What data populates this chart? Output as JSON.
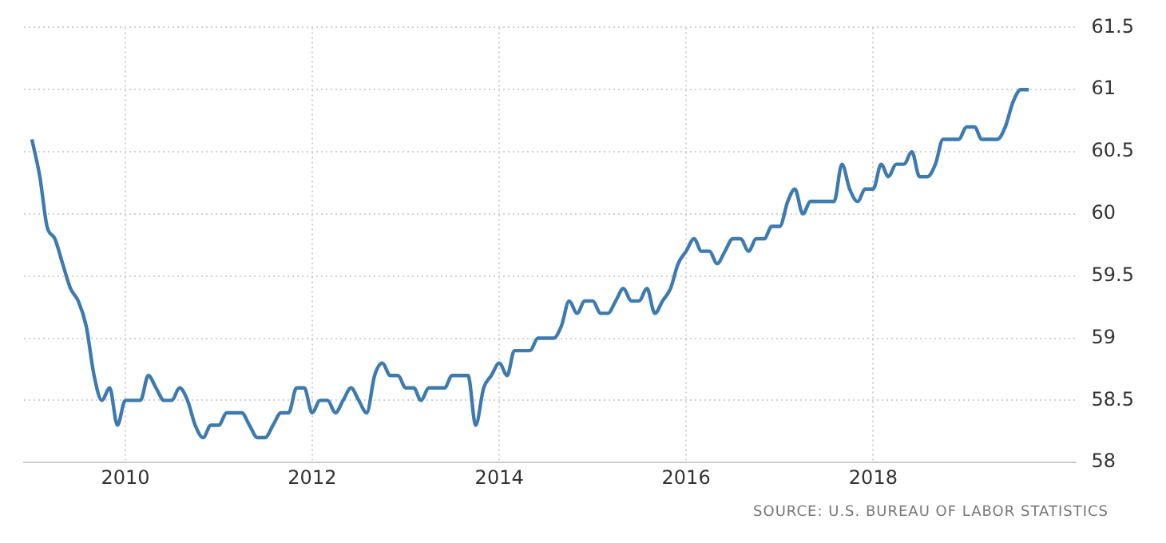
{
  "chart_data": {
    "type": "line",
    "x": [
      "2009-01",
      "2009-02",
      "2009-03",
      "2009-04",
      "2009-05",
      "2009-06",
      "2009-07",
      "2009-08",
      "2009-09",
      "2009-10",
      "2009-11",
      "2009-12",
      "2010-01",
      "2010-02",
      "2010-03",
      "2010-04",
      "2010-05",
      "2010-06",
      "2010-07",
      "2010-08",
      "2010-09",
      "2010-10",
      "2010-11",
      "2010-12",
      "2011-01",
      "2011-02",
      "2011-03",
      "2011-04",
      "2011-05",
      "2011-06",
      "2011-07",
      "2011-08",
      "2011-09",
      "2011-10",
      "2011-11",
      "2011-12",
      "2012-01",
      "2012-02",
      "2012-03",
      "2012-04",
      "2012-05",
      "2012-06",
      "2012-07",
      "2012-08",
      "2012-09",
      "2012-10",
      "2012-11",
      "2012-12",
      "2013-01",
      "2013-02",
      "2013-03",
      "2013-04",
      "2013-05",
      "2013-06",
      "2013-07",
      "2013-08",
      "2013-09",
      "2013-10",
      "2013-11",
      "2013-12",
      "2014-01",
      "2014-02",
      "2014-03",
      "2014-04",
      "2014-05",
      "2014-06",
      "2014-07",
      "2014-08",
      "2014-09",
      "2014-10",
      "2014-11",
      "2014-12",
      "2015-01",
      "2015-02",
      "2015-03",
      "2015-04",
      "2015-05",
      "2015-06",
      "2015-07",
      "2015-08",
      "2015-09",
      "2015-10",
      "2015-11",
      "2015-12",
      "2016-01",
      "2016-02",
      "2016-03",
      "2016-04",
      "2016-05",
      "2016-06",
      "2016-07",
      "2016-08",
      "2016-09",
      "2016-10",
      "2016-11",
      "2016-12",
      "2017-01",
      "2017-02",
      "2017-03",
      "2017-04",
      "2017-05",
      "2017-06",
      "2017-07",
      "2017-08",
      "2017-09",
      "2017-10",
      "2017-11",
      "2017-12",
      "2018-01",
      "2018-02",
      "2018-03",
      "2018-04",
      "2018-05",
      "2018-06",
      "2018-07",
      "2018-08",
      "2018-09",
      "2018-10",
      "2018-11",
      "2018-12",
      "2019-01",
      "2019-02",
      "2019-03",
      "2019-04",
      "2019-05",
      "2019-06",
      "2019-07",
      "2019-08",
      "2019-09"
    ],
    "series": [
      {
        "color": "#3d7ab0",
        "values": [
          60.6,
          60.3,
          59.9,
          59.8,
          59.6,
          59.4,
          59.3,
          59.1,
          58.7,
          58.5,
          58.6,
          58.3,
          58.5,
          58.5,
          58.5,
          58.7,
          58.6,
          58.5,
          58.5,
          58.6,
          58.5,
          58.3,
          58.2,
          58.3,
          58.3,
          58.4,
          58.4,
          58.4,
          58.3,
          58.2,
          58.2,
          58.3,
          58.4,
          58.4,
          58.6,
          58.6,
          58.4,
          58.5,
          58.5,
          58.4,
          58.5,
          58.6,
          58.5,
          58.4,
          58.7,
          58.8,
          58.7,
          58.7,
          58.6,
          58.6,
          58.5,
          58.6,
          58.6,
          58.6,
          58.7,
          58.7,
          58.7,
          58.3,
          58.6,
          58.7,
          58.8,
          58.7,
          58.9,
          58.9,
          58.9,
          59.0,
          59.0,
          59.0,
          59.1,
          59.3,
          59.2,
          59.3,
          59.3,
          59.2,
          59.2,
          59.3,
          59.4,
          59.3,
          59.3,
          59.4,
          59.2,
          59.3,
          59.4,
          59.6,
          59.7,
          59.8,
          59.7,
          59.7,
          59.6,
          59.7,
          59.8,
          59.8,
          59.7,
          59.8,
          59.8,
          59.9,
          59.9,
          60.1,
          60.2,
          60.0,
          60.1,
          60.1,
          60.1,
          60.1,
          60.4,
          60.2,
          60.1,
          60.2,
          60.2,
          60.4,
          60.3,
          60.4,
          60.4,
          60.5,
          60.3,
          60.3,
          60.4,
          60.6,
          60.6,
          60.6,
          60.7,
          60.7,
          60.6,
          60.6,
          60.6,
          60.7,
          60.9,
          61.0,
          61.0
        ]
      }
    ],
    "xlim": [
      "2008-12",
      "2020-03"
    ],
    "xticks": [
      "2010",
      "2012",
      "2014",
      "2016",
      "2018"
    ],
    "ylim": [
      58,
      61.5
    ],
    "yticks": [
      58,
      58.5,
      59,
      59.5,
      60,
      60.5,
      61,
      61.5
    ],
    "grid": true,
    "legend": false,
    "marker": "none",
    "line_style": "solid",
    "annotations": [
      "SOURCE: U.S. BUREAU OF LABOR STATISTICS"
    ]
  }
}
